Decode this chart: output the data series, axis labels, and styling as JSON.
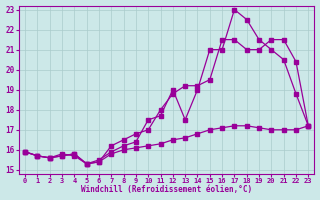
{
  "xlabel": "Windchill (Refroidissement éolien,°C)",
  "background_color": "#cce8e8",
  "line_color": "#990099",
  "grid_color": "#aacccc",
  "xlim": [
    -0.5,
    23.5
  ],
  "ylim": [
    14.8,
    23.2
  ],
  "yticks": [
    15,
    16,
    17,
    18,
    19,
    20,
    21,
    22,
    23
  ],
  "xticks": [
    0,
    1,
    2,
    3,
    4,
    5,
    6,
    7,
    8,
    9,
    10,
    11,
    12,
    13,
    14,
    15,
    16,
    17,
    18,
    19,
    20,
    21,
    22,
    23
  ],
  "series1_x": [
    0,
    1,
    2,
    3,
    4,
    5,
    6,
    7,
    8,
    9,
    10,
    11,
    12,
    13,
    14,
    15,
    16,
    17,
    18,
    19,
    20,
    21,
    22,
    23
  ],
  "series1_y": [
    15.9,
    15.7,
    15.6,
    15.8,
    15.7,
    15.3,
    15.5,
    15.9,
    16.2,
    16.4,
    17.5,
    17.7,
    19.0,
    17.5,
    19.0,
    21.0,
    21.0,
    23.0,
    22.5,
    21.5,
    21.0,
    20.5,
    18.8,
    17.2
  ],
  "series2_x": [
    0,
    1,
    2,
    3,
    4,
    5,
    6,
    7,
    8,
    9,
    10,
    11,
    12,
    13,
    14,
    15,
    16,
    17,
    18,
    19,
    20,
    21,
    22,
    23
  ],
  "series2_y": [
    15.9,
    15.7,
    15.6,
    15.7,
    15.8,
    15.3,
    15.4,
    16.2,
    16.5,
    16.8,
    17.0,
    18.0,
    18.8,
    19.2,
    19.2,
    19.5,
    21.5,
    21.5,
    21.0,
    21.0,
    21.5,
    21.5,
    20.4,
    17.2
  ],
  "series3_x": [
    0,
    1,
    2,
    3,
    4,
    5,
    6,
    7,
    8,
    9,
    10,
    11,
    12,
    13,
    14,
    15,
    16,
    17,
    18,
    19,
    20,
    21,
    22,
    23
  ],
  "series3_y": [
    15.9,
    15.7,
    15.6,
    15.7,
    15.8,
    15.3,
    15.4,
    15.8,
    16.0,
    16.1,
    16.2,
    16.3,
    16.5,
    16.6,
    16.8,
    17.0,
    17.1,
    17.2,
    17.2,
    17.1,
    17.0,
    17.0,
    17.0,
    17.2
  ]
}
